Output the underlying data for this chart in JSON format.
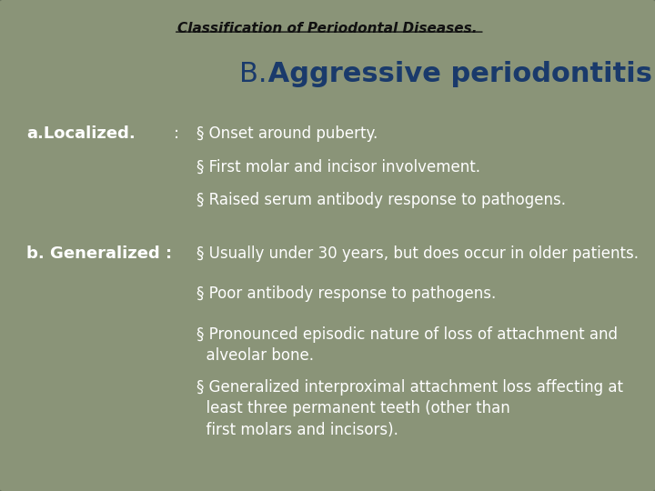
{
  "bg_color": "#7a8570",
  "slide_bg": "#8a9478",
  "title": "Classification of Periodontal Diseases.",
  "subtitle_b": "B.",
  "subtitle_main": " Aggressive periodontitis",
  "title_color": "#111111",
  "subtitle_color": "#1a3a6b",
  "label_a": "a.Localized.",
  "colon_a": ":",
  "label_b": "b. Generalized :",
  "label_color": "#ffffff",
  "localized_bullets": [
    "§ Onset around puberty.",
    "§ First molar and incisor involvement.",
    "§ Raised serum antibody response to pathogens."
  ],
  "generalized_line1": "§ Usually under 30 years, but does occur in older patients.",
  "generalized_line2": "§ Poor antibody response to pathogens.",
  "generalized_line3": "§ Pronounced episodic nature of loss of attachment and\n  alveolar bone.",
  "generalized_line4": "§ Generalized interproximal attachment loss affecting at\n  least three permanent teeth (other than\n  first molars and incisors).",
  "text_color": "#ffffff",
  "figsize": [
    7.2,
    5.4
  ],
  "dpi": 100
}
